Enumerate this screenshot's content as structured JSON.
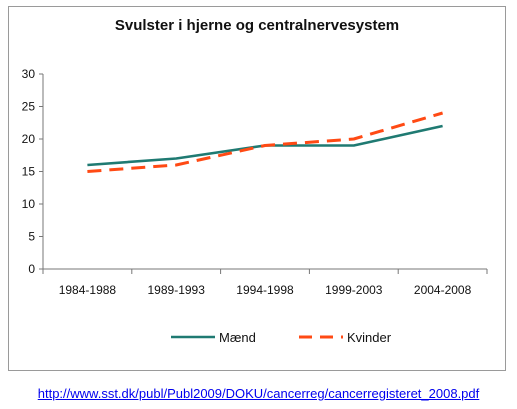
{
  "chart_data": {
    "type": "line",
    "title": "Svulster i hjerne og centralnervesystem",
    "categories": [
      "1984-1988",
      "1989-1993",
      "1994-1998",
      "1999-2003",
      "2004-2008"
    ],
    "series": [
      {
        "name": "Mænd",
        "values": [
          16,
          17,
          19,
          19,
          22
        ],
        "color": "#1f7a72",
        "style": "solid"
      },
      {
        "name": "Kvinder",
        "values": [
          15,
          16,
          19,
          20,
          24
        ],
        "color": "#ff4a14",
        "style": "dashed"
      }
    ],
    "ylim": [
      0,
      30
    ],
    "yticks": [
      0,
      5,
      10,
      15,
      20,
      25,
      30
    ],
    "grid": false,
    "legend": "bottom"
  },
  "source": {
    "url": "http://www.sst.dk/publ/Publ2009/DOKU/cancerreg/cancerregisteret_2008.pdf"
  }
}
